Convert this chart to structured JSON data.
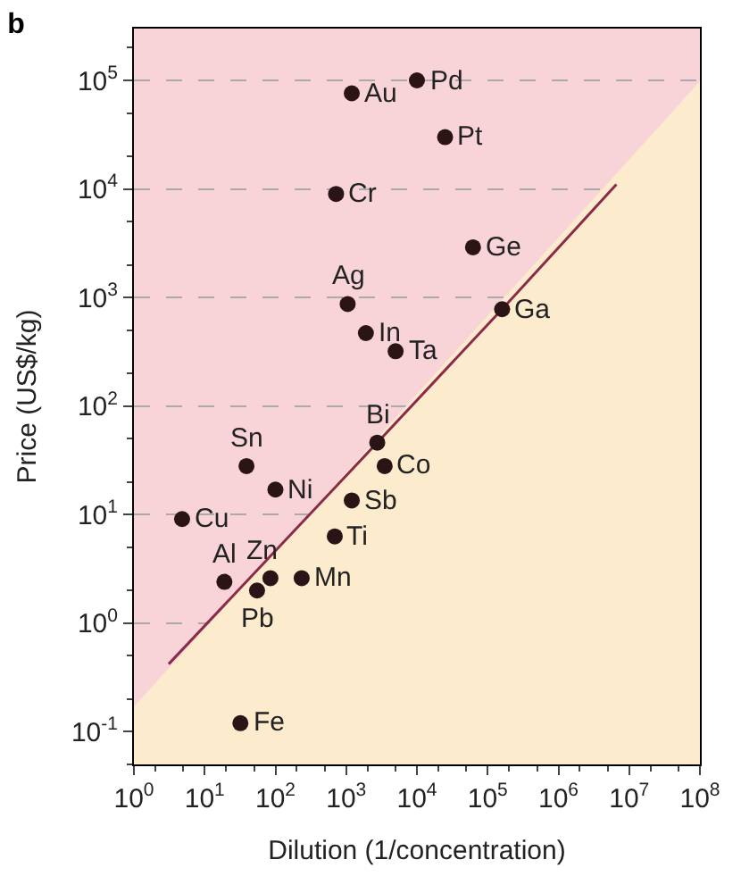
{
  "chart_data": {
    "type": "scatter",
    "title": "b",
    "xlabel": "Dilution (1/concentration)",
    "ylabel": "Price (US$/kg)",
    "log": "xy",
    "grid": "y",
    "xlim": [
      1,
      100000000
    ],
    "ylim": [
      0.05,
      300000
    ],
    "xticks": [
      {
        "value": 1,
        "label": "10$^{0}$"
      },
      {
        "value": 10,
        "label": "10$^{1}$"
      },
      {
        "value": 100,
        "label": "10$^{2}$"
      },
      {
        "value": 1000,
        "label": "10$^{3}$"
      },
      {
        "value": 10000,
        "label": "10$^{4}$"
      },
      {
        "value": 100000,
        "label": "10$^{5}$"
      },
      {
        "value": 1000000,
        "label": "10$^{6}$"
      },
      {
        "value": 10000000,
        "label": "10$^{7}$"
      },
      {
        "value": 100000000,
        "label": "10$^{8}$"
      }
    ],
    "yticks": [
      {
        "value": 0.1,
        "label": "10$^{-1}$"
      },
      {
        "value": 1,
        "label": "10$^{0}$"
      },
      {
        "value": 10,
        "label": "10$^{1}$"
      },
      {
        "value": 100,
        "label": "10$^{2}$"
      },
      {
        "value": 1000,
        "label": "10$^{3}$"
      },
      {
        "value": 10000,
        "label": "10$^{4}$"
      },
      {
        "value": 100000,
        "label": "10$^{5}$"
      }
    ],
    "bands": [
      {
        "axis": "y",
        "from": 0.05,
        "to": 300000,
        "color": "#f8d4d8"
      }
    ],
    "series": [
      {
        "type": "area",
        "color": "#fcebcc",
        "x": [
          1,
          100000000
        ],
        "values": [
          0.17,
          98000
        ]
      },
      {
        "type": "line",
        "color": "#8b2a4a",
        "x": [
          3.1,
          2750,
          160000,
          6600000
        ],
        "values": [
          0.42,
          46,
          780,
          11000
        ]
      },
      {
        "marker": "circle",
        "color": "#2a1416",
        "x": [
          1200,
          10000,
          25000,
          720,
          62000,
          1050,
          160000,
          1900,
          5000,
          2750,
          3500,
          39,
          100,
          1200,
          4.8,
          690,
          19,
          85,
          55,
          235,
          32
        ],
        "values": [
          76000,
          100000,
          30000,
          9000,
          2900,
          870,
          780,
          470,
          320,
          46,
          28,
          28,
          17,
          13.5,
          9.1,
          6.3,
          2.4,
          2.6,
          2.0,
          2.6,
          0.12
        ]
      }
    ],
    "annotations": [
      {
        "text": "Au",
        "x": 1200,
        "y": 76000
      },
      {
        "text": "Pd",
        "x": 10000,
        "y": 100000
      },
      {
        "text": "Pt",
        "x": 25000,
        "y": 30000
      },
      {
        "text": "Cr",
        "x": 720,
        "y": 9000
      },
      {
        "text": "Ge",
        "x": 62000,
        "y": 2900
      },
      {
        "text": "Ag",
        "x": 1050,
        "y": 870
      },
      {
        "text": "Ga",
        "x": 160000,
        "y": 780
      },
      {
        "text": "In",
        "x": 1900,
        "y": 470
      },
      {
        "text": "Ta",
        "x": 5000,
        "y": 320
      },
      {
        "text": "Bi",
        "x": 2750,
        "y": 46
      },
      {
        "text": "Co",
        "x": 3500,
        "y": 28
      },
      {
        "text": "Sn",
        "x": 39,
        "y": 28
      },
      {
        "text": "Ni",
        "x": 100,
        "y": 17
      },
      {
        "text": "Sb",
        "x": 1200,
        "y": 13.5
      },
      {
        "text": "Cu",
        "x": 4.8,
        "y": 9.1
      },
      {
        "text": "Ti",
        "x": 690,
        "y": 6.3
      },
      {
        "text": "Al",
        "x": 19,
        "y": 2.4
      },
      {
        "text": "Zn",
        "x": 85,
        "y": 2.6
      },
      {
        "text": "Pb",
        "x": 55,
        "y": 2.0
      },
      {
        "text": "Mn",
        "x": 235,
        "y": 2.6
      },
      {
        "text": "Fe",
        "x": 32,
        "y": 0.12
      }
    ]
  }
}
